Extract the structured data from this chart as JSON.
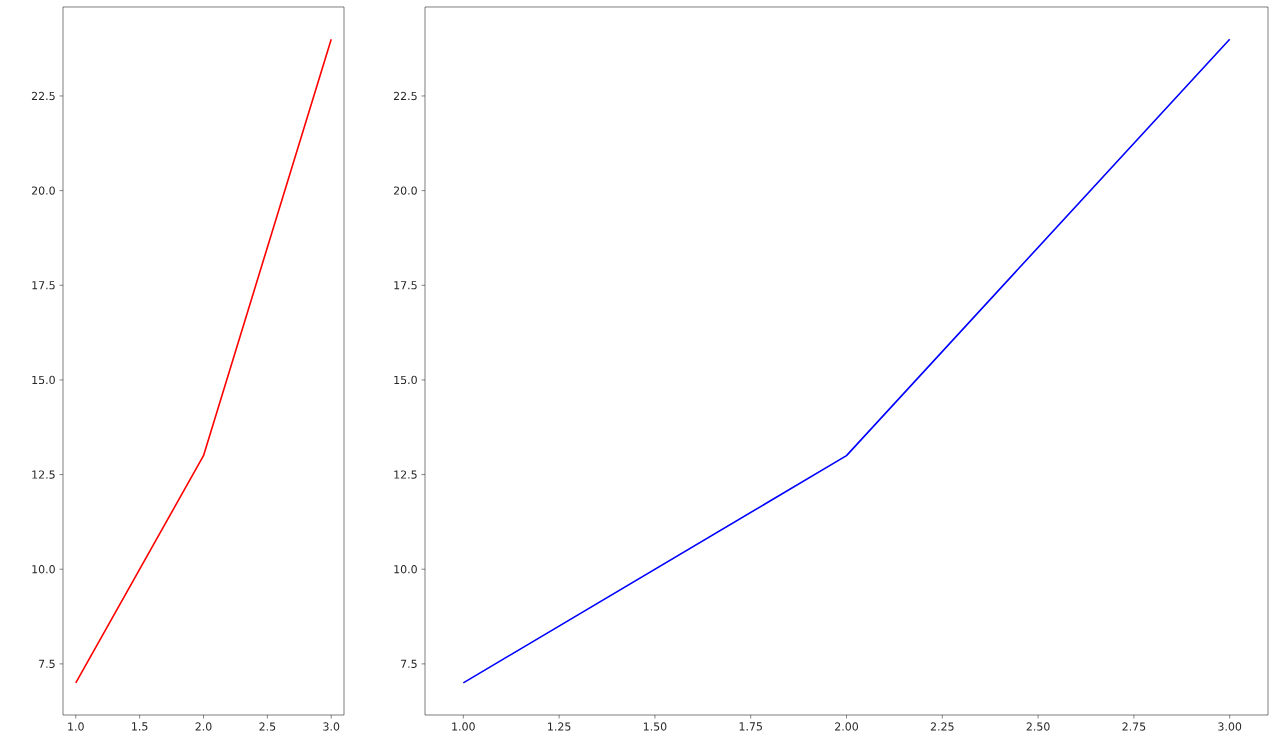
{
  "chart_data": [
    {
      "type": "line",
      "x": [
        1,
        2,
        3
      ],
      "series": [
        {
          "color": "#ff0000",
          "values": [
            7,
            13,
            24
          ]
        }
      ],
      "xlim": [
        0.9,
        3.1
      ],
      "ylim": [
        6.15,
        24.85
      ],
      "xticks": [
        {
          "value": 1,
          "label": "1.0"
        },
        1.5,
        {
          "value": 2,
          "label": "2.0"
        },
        2.5,
        {
          "value": 3,
          "label": "3.0"
        }
      ],
      "yticks": [
        7.5,
        {
          "value": 10,
          "label": "10.0"
        },
        12.5,
        {
          "value": 15,
          "label": "15.0"
        },
        17.5,
        {
          "value": 20,
          "label": "20.0"
        },
        22.5
      ],
      "grid": false
    },
    {
      "type": "line",
      "x": [
        1,
        2,
        3
      ],
      "series": [
        {
          "color": "#0000ff",
          "values": [
            7,
            13,
            24
          ]
        }
      ],
      "xlim": [
        0.9,
        3.1
      ],
      "ylim": [
        6.15,
        24.85
      ],
      "xticks": [
        {
          "value": 1,
          "label": "1.00"
        },
        1.25,
        {
          "value": 1.5,
          "label": "1.50"
        },
        1.75,
        {
          "value": 2,
          "label": "2.00"
        },
        2.25,
        {
          "value": 2.5,
          "label": "2.50"
        },
        2.75,
        {
          "value": 3,
          "label": "3.00"
        }
      ],
      "yticks": [
        7.5,
        {
          "value": 10,
          "label": "10.0"
        },
        12.5,
        {
          "value": 15,
          "label": "15.0"
        },
        17.5,
        {
          "value": 20,
          "label": "20.0"
        },
        22.5
      ],
      "grid": false
    }
  ]
}
